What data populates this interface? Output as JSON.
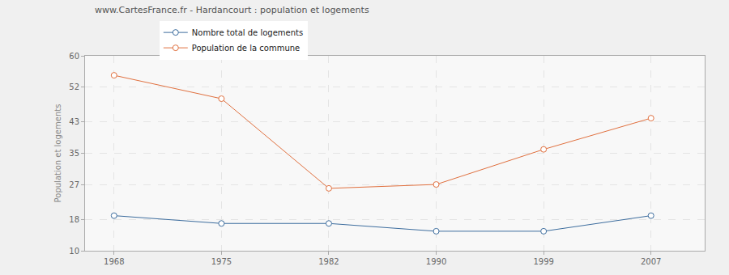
{
  "chart_data": {
    "type": "line",
    "title": "www.CartesFrance.fr - Hardancourt : population et logements",
    "y_label": "Population et logements",
    "categories": [
      "1968",
      "1975",
      "1982",
      "1990",
      "1999",
      "2007"
    ],
    "series": [
      {
        "name": "Nombre total de logements",
        "color": "#3d6d9e",
        "marker": "circle-open",
        "values": [
          19,
          17,
          17,
          15,
          15,
          19
        ]
      },
      {
        "name": "Population de la commune",
        "color": "#e0703f",
        "marker": "circle-open",
        "values": [
          55,
          49,
          26,
          27,
          36,
          44
        ]
      }
    ],
    "ylim": [
      10,
      60
    ],
    "yticks": [
      10,
      18,
      27,
      35,
      43,
      52,
      60
    ],
    "grid": true,
    "legend": "top"
  }
}
